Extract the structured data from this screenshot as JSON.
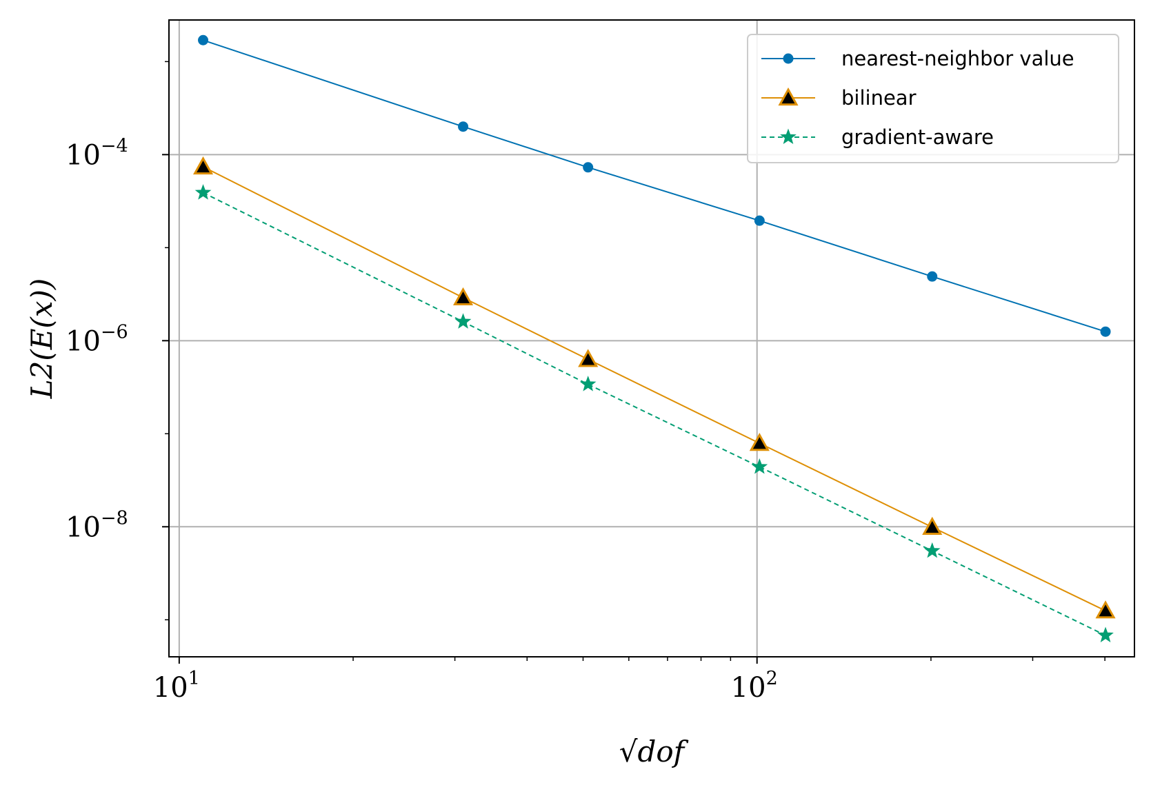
{
  "chart_data": {
    "type": "line",
    "scale": {
      "x": "log",
      "y": "log"
    },
    "xlabel": "√dof",
    "ylabel": "L2(E(x))",
    "xlim": [
      9.6,
      450
    ],
    "ylim": [
      4e-10,
      0.0028
    ],
    "x": [
      11,
      31,
      51,
      101,
      201,
      401
    ],
    "x_ticks": [
      {
        "value": 10,
        "base": "10",
        "exp": "1"
      },
      {
        "value": 100,
        "base": "10",
        "exp": "2"
      }
    ],
    "y_ticks": [
      {
        "value": 0.0001,
        "base": "10",
        "exp": "−4"
      },
      {
        "value": 1e-06,
        "base": "10",
        "exp": "−6"
      },
      {
        "value": 1e-08,
        "base": "10",
        "exp": "−8"
      }
    ],
    "grid": true,
    "legend_position": "top-right",
    "series": [
      {
        "name": "nearest-neighbor value",
        "color": "#0072b2",
        "marker": "circle",
        "linestyle": "solid",
        "values": [
          0.0017,
          0.0002,
          7.3e-05,
          1.95e-05,
          4.9e-06,
          1.25e-06
        ]
      },
      {
        "name": "bilinear",
        "color": "#de8f05",
        "marker": "triangle",
        "linestyle": "solid",
        "values": [
          7.4e-05,
          2.9e-06,
          6.3e-07,
          7.9e-08,
          9.9e-09,
          1.25e-09
        ]
      },
      {
        "name": "gradient-aware",
        "color": "#029e73",
        "marker": "star",
        "linestyle": "dashed",
        "values": [
          3.9e-05,
          1.6e-06,
          3.4e-07,
          4.4e-08,
          5.5e-09,
          6.8e-10
        ]
      }
    ]
  }
}
